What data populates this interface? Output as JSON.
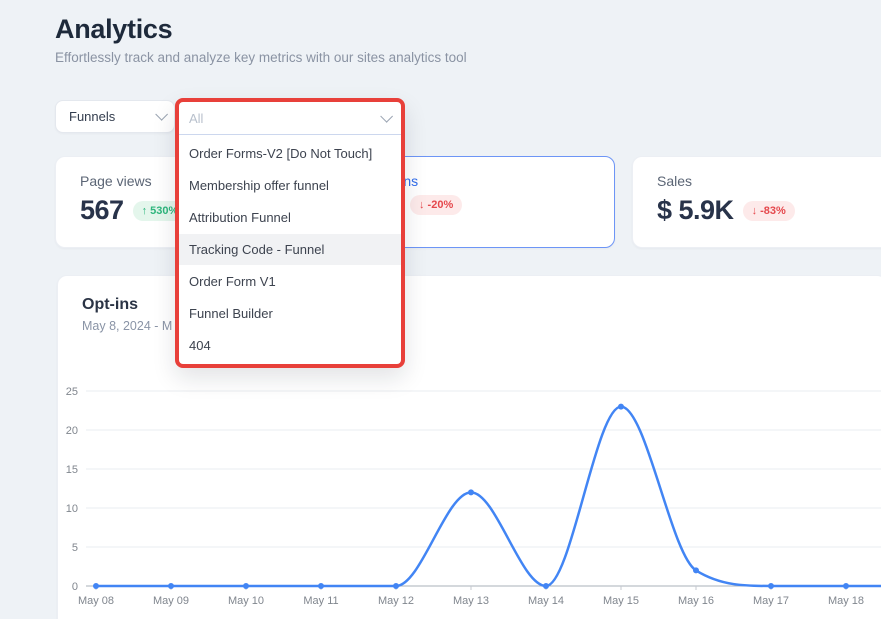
{
  "page": {
    "title": "Analytics",
    "subtitle": "Effortlessly track and analyze key metrics with our sites analytics tool"
  },
  "filters": {
    "type_select": {
      "value": "Funnels"
    },
    "funnel_select": {
      "placeholder": "All",
      "options": [
        {
          "label": "Order Forms-V2 [Do Not Touch]",
          "highlighted": false
        },
        {
          "label": "Membership offer funnel",
          "highlighted": false
        },
        {
          "label": "Attribution Funnel",
          "highlighted": false
        },
        {
          "label": "Tracking Code - Funnel",
          "highlighted": true
        },
        {
          "label": "Order Form V1",
          "highlighted": false
        },
        {
          "label": "Funnel Builder",
          "highlighted": false
        },
        {
          "label": "404",
          "highlighted": false
        }
      ]
    }
  },
  "stat_cards": [
    {
      "label": "Page views",
      "value": "567",
      "change": "↑ 530%",
      "trend": "up",
      "selected": false
    },
    {
      "label": "Opt-ins",
      "value": "",
      "change": "↓ -20%",
      "trend": "down",
      "selected": true
    },
    {
      "label": "Sales",
      "value": "$ 5.9K",
      "change": "↓ -83%",
      "trend": "down",
      "selected": false
    }
  ],
  "chart_section": {
    "title": "Opt-ins",
    "date_range": "May 8, 2024 - M"
  },
  "chart_data": {
    "type": "line",
    "title": "Opt-ins",
    "categories": [
      "May 08",
      "May 09",
      "May 10",
      "May 11",
      "May 12",
      "May 13",
      "May 14",
      "May 15",
      "May 16",
      "May 17",
      "May 18"
    ],
    "values": [
      0,
      0,
      0,
      0,
      0,
      12,
      0,
      23,
      2,
      0,
      0
    ],
    "ylim": [
      0,
      25
    ],
    "yticks": [
      0,
      5,
      10,
      15,
      20,
      25
    ],
    "grid": true,
    "smooth": true,
    "line_color": "#4285f4",
    "line_extends_right": true
  },
  "colors": {
    "annotation_red": "#e8403a",
    "selected_card_border": "#6d95f6",
    "selected_label_blue": "#2f6ceb",
    "badge_up_text": "#2eb67d",
    "badge_up_bg": "#e4f6ec",
    "badge_down_text": "#e5484d",
    "badge_down_bg": "#fdeaea",
    "chart_line": "#4285f4",
    "background": "#eef2f6"
  }
}
